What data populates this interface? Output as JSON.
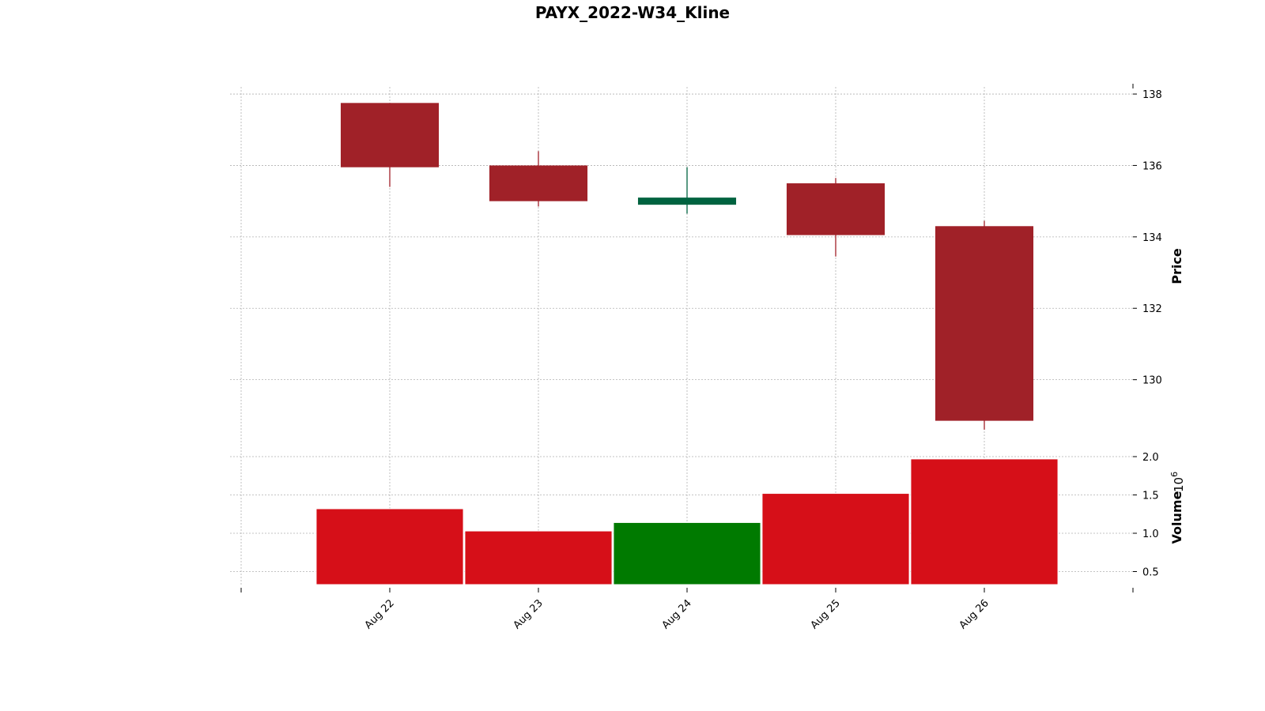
{
  "chart_data": {
    "type": "candlestick",
    "title": "PAYX_2022-W34_Kline",
    "categories": [
      "Aug 22",
      "Aug 23",
      "Aug 24",
      "Aug 25",
      "Aug 26"
    ],
    "ohlc": [
      {
        "date": "Aug 22",
        "open": 137.75,
        "high": 137.75,
        "low": 135.4,
        "close": 135.95
      },
      {
        "date": "Aug 23",
        "open": 136.0,
        "high": 136.4,
        "low": 134.85,
        "close": 135.0
      },
      {
        "date": "Aug 24",
        "open": 134.9,
        "high": 135.95,
        "low": 134.65,
        "close": 135.1
      },
      {
        "date": "Aug 25",
        "open": 135.5,
        "high": 135.65,
        "low": 133.45,
        "close": 134.05
      },
      {
        "date": "Aug 26",
        "open": 134.3,
        "high": 134.45,
        "low": 128.6,
        "close": 128.85
      }
    ],
    "volume": {
      "ylabel": "Volume",
      "multiplier_label": "10",
      "multiplier_exp": "6",
      "values": [
        1.32,
        1.03,
        1.14,
        1.52,
        1.97
      ],
      "ylim": [
        0.33,
        2.0
      ],
      "ticks": [
        "0.5",
        "1.0",
        "1.5",
        "2.0"
      ],
      "tick_values": [
        0.5,
        1.0,
        1.5,
        2.0
      ]
    },
    "price": {
      "ylabel": "Price",
      "ylim": [
        128.2,
        138.2
      ],
      "ticks": [
        "130",
        "132",
        "134",
        "136",
        "138"
      ],
      "tick_values": [
        130,
        132,
        134,
        136,
        138
      ]
    },
    "colors": {
      "up_candle": "#006340",
      "down_candle": "#a02128",
      "up_volume": "#007a00",
      "down_volume": "#d60f18",
      "grid": "#b0b0b0"
    },
    "grid": true
  }
}
